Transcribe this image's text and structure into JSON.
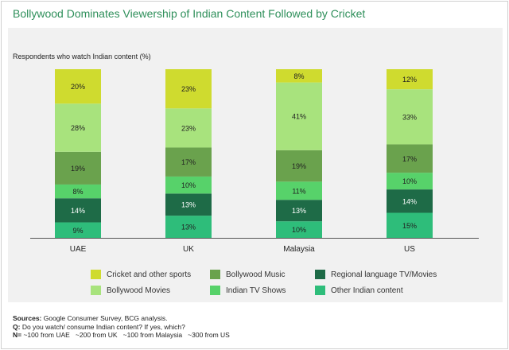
{
  "chart_data": {
    "type": "bar",
    "stacked": true,
    "title": "Bollywood Dominates Viewership of Indian Content Followed by Cricket",
    "subtitle": "Respondents who watch Indian content (%)",
    "categories": [
      "UAE",
      "UK",
      "Malaysia",
      "US"
    ],
    "ylim": [
      0,
      100
    ],
    "series": [
      {
        "name": "Other Indian content",
        "color": "#2ebd7a",
        "values": [
          9,
          13,
          10,
          15
        ]
      },
      {
        "name": "Regional language TV/Movies",
        "color": "#1e6b47",
        "values": [
          14,
          13,
          13,
          14
        ]
      },
      {
        "name": "Indian TV Shows",
        "color": "#57d26a",
        "values": [
          8,
          10,
          11,
          10
        ]
      },
      {
        "name": "Bollywood Music",
        "color": "#6aa24d",
        "values": [
          19,
          17,
          19,
          17
        ]
      },
      {
        "name": "Bollywood Movies",
        "color": "#a8e37d",
        "values": [
          28,
          23,
          41,
          33
        ]
      },
      {
        "name": "Cricket and other sports",
        "color": "#cfdb2f",
        "values": [
          20,
          23,
          8,
          12
        ]
      }
    ],
    "legend": [
      "Cricket and other sports",
      "Bollywood Music",
      "Regional language TV/Movies",
      "Bollywood Movies",
      "Indian TV Shows",
      "Other Indian content"
    ]
  },
  "footer": {
    "sources_label": "Sources:",
    "sources_text": " Google Consumer Survey, BCG analysis.",
    "q_label": "Q:",
    "q_text": " Do you watch/ consume Indian content? If yes, which?",
    "n_label": "N=",
    "n_text": " ~100 from UAE   ~200 from UK   ~100 from Malaysia   ~300 from US"
  }
}
